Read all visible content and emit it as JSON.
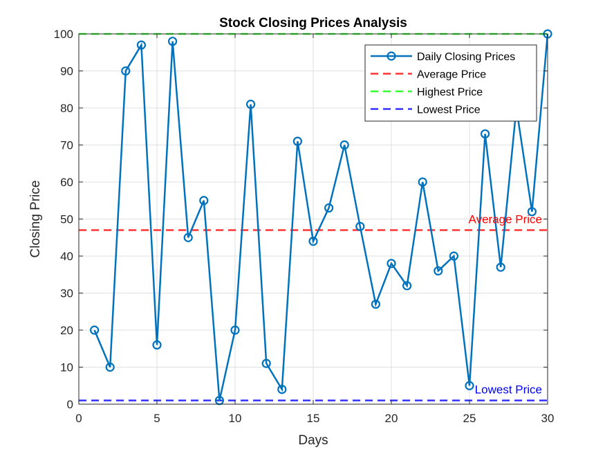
{
  "chart_data": {
    "type": "line",
    "title": "Stock Closing Prices Analysis",
    "xlabel": "Days",
    "ylabel": "Closing Price",
    "xlim": [
      0,
      30
    ],
    "ylim": [
      0,
      100
    ],
    "xticks": [
      0,
      5,
      10,
      15,
      20,
      25,
      30
    ],
    "yticks": [
      0,
      10,
      20,
      30,
      40,
      50,
      60,
      70,
      80,
      90,
      100
    ],
    "grid": true,
    "legend_position": "top-right",
    "series": [
      {
        "name": "Daily Closing Prices",
        "color": "#0072BD",
        "style": "solid-with-circle-markers",
        "x": [
          1,
          2,
          3,
          4,
          5,
          6,
          7,
          8,
          9,
          10,
          11,
          12,
          13,
          14,
          15,
          16,
          17,
          18,
          19,
          20,
          21,
          22,
          23,
          24,
          25,
          26,
          27,
          28,
          29,
          30
        ],
        "values": [
          20,
          10,
          90,
          97,
          16,
          98,
          45,
          55,
          1,
          20,
          81,
          11,
          4,
          71,
          44,
          53,
          70,
          48,
          27,
          38,
          32,
          60,
          36,
          40,
          5,
          73,
          37,
          80,
          52,
          100
        ]
      }
    ],
    "reference_lines": [
      {
        "name": "Average Price",
        "value": 47,
        "color": "#FF3333"
      },
      {
        "name": "Highest Price",
        "value": 100,
        "color": "#33FF33"
      },
      {
        "name": "Lowest Price",
        "value": 1,
        "color": "#3333FF"
      }
    ],
    "annotations": [
      {
        "text": "Average Price",
        "x": 30,
        "y": 48.5,
        "color": "#FF0000"
      },
      {
        "text": "Lowest Price",
        "x": 30,
        "y": 2.5,
        "color": "#0000FF"
      }
    ]
  }
}
